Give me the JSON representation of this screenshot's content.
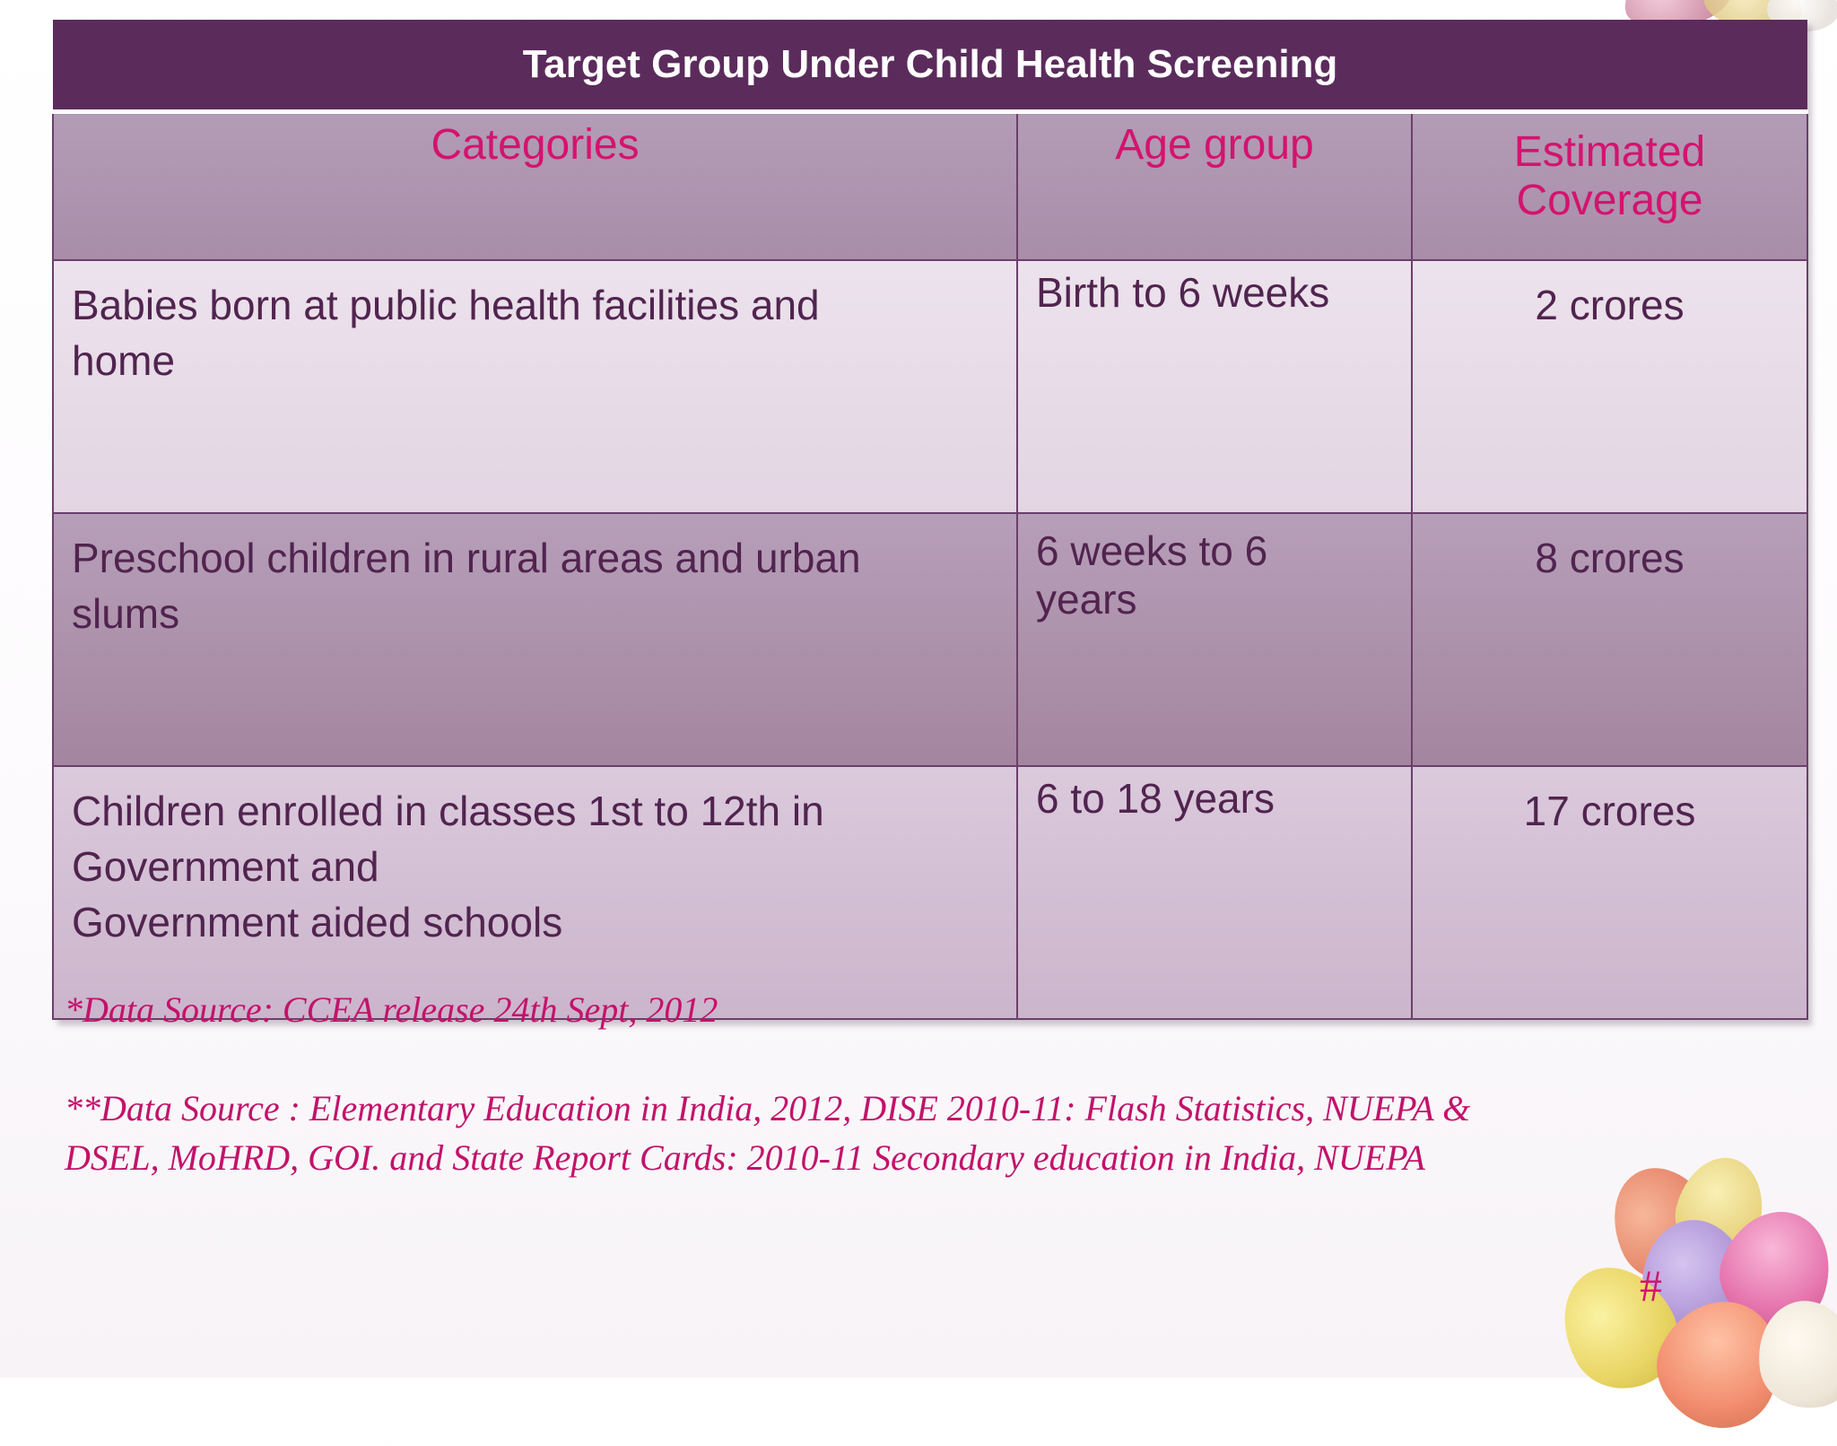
{
  "table": {
    "title": "Target Group Under Child Health Screening",
    "headers": {
      "categories": "Categories",
      "age_group": "Age group",
      "coverage_line1": "Estimated",
      "coverage_line2": "Coverage"
    },
    "rows": [
      {
        "category_lines": [
          "Babies born at public health facilities and",
          "home"
        ],
        "age_lines": [
          "Birth to 6 weeks"
        ],
        "coverage": "2 crores"
      },
      {
        "category_lines": [
          "Preschool children in rural areas and urban",
          "slums"
        ],
        "age_lines": [
          "6 weeks to 6",
          "years"
        ],
        "coverage": "8 crores"
      },
      {
        "category_lines": [
          "Children enrolled in classes 1st to 12th in",
          "Government and",
          "Government aided schools"
        ],
        "age_lines": [
          "6 to 18 years"
        ],
        "coverage": "17 crores"
      }
    ]
  },
  "sources": {
    "source1": "*Data Source: CCEA release 24th Sept, 2012",
    "source2_line1": "**Data Source : Elementary Education in India, 2012, DISE 2010-11: Flash Statistics, NUEPA &",
    "source2_line2": "DSEL, MoHRD, GOI. and  State Report Cards: 2010-11 Secondary education in India, NUEPA"
  },
  "slide_number": "#",
  "colors": {
    "title_bg": "#5b2b5c",
    "header_text": "#d4136f",
    "body_text": "#51244f",
    "source_text": "#c2136a"
  }
}
